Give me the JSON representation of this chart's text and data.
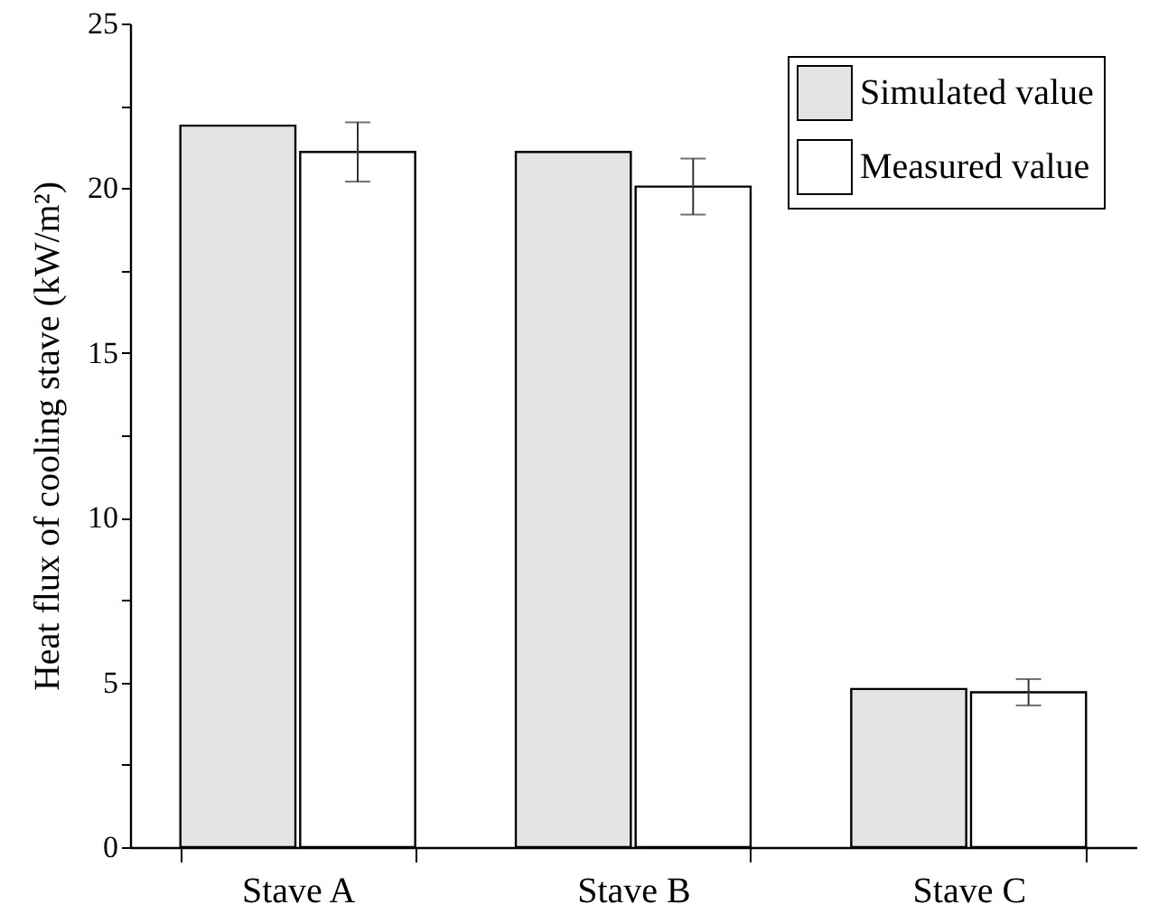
{
  "chart_data": {
    "type": "bar",
    "ylabel": "Heat flux of cooling stave  (kW/m²)",
    "categories": [
      "Stave A",
      "Stave B",
      "Stave C"
    ],
    "series": [
      {
        "name": "Simulated value",
        "color": "#e4e4e4",
        "values": [
          21.9,
          21.1,
          4.8
        ]
      },
      {
        "name": "Measured value",
        "color": "#ffffff",
        "values": [
          21.1,
          20.05,
          4.7
        ],
        "errors": [
          [
            20.2,
            22.0
          ],
          [
            19.2,
            20.9
          ],
          [
            4.3,
            5.1
          ]
        ]
      }
    ],
    "ylim": [
      0,
      25
    ],
    "yticks": [
      0,
      {
        "value": 2.5,
        "label": null
      },
      5,
      {
        "value": 7.5,
        "label": null
      },
      10,
      {
        "value": 12.5,
        "label": null
      },
      15,
      {
        "value": 17.5,
        "label": null
      },
      20,
      {
        "value": 22.5,
        "label": null
      },
      25
    ],
    "grid": false,
    "legend": "top right"
  }
}
